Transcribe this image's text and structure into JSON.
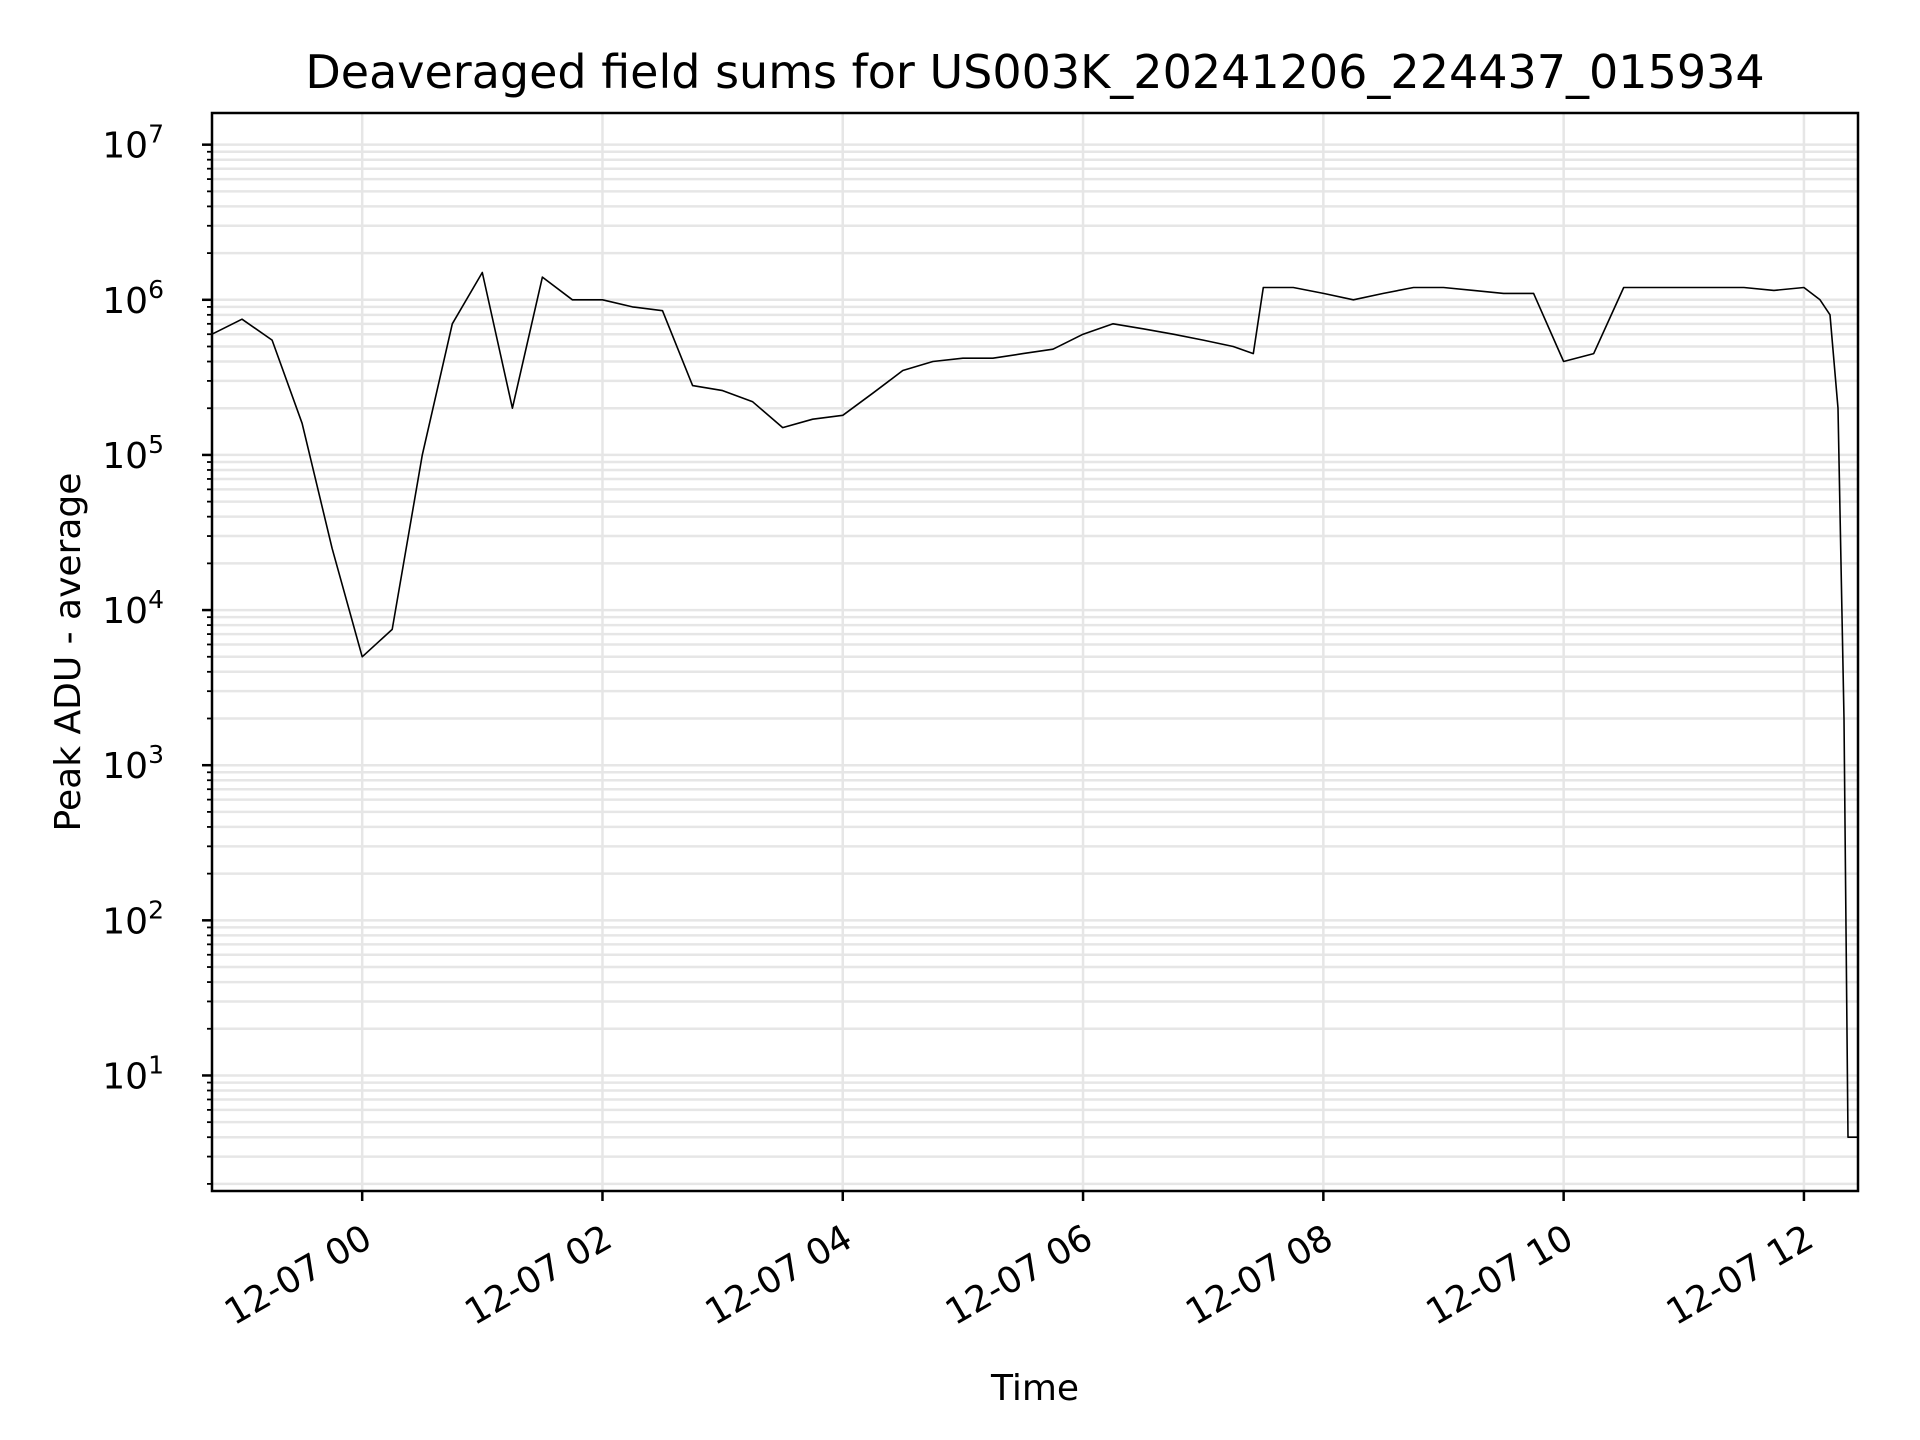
{
  "chart_data": {
    "type": "line",
    "title": "Deaveraged field sums for US003K_20241206_224437_015934",
    "xlabel": "Time",
    "ylabel": "Peak ADU - average",
    "yscale": "log",
    "ylim": [
      1.8,
      16000000
    ],
    "xlim": [
      "2024-12-06 22:45",
      "2024-12-07 12:27"
    ],
    "grid": true,
    "x_ticks": [
      "12-07 00",
      "12-07 02",
      "12-07 04",
      "12-07 06",
      "12-07 08",
      "12-07 10",
      "12-07 12"
    ],
    "y_ticks": [
      {
        "base": "10",
        "exp": "1"
      },
      {
        "base": "10",
        "exp": "2"
      },
      {
        "base": "10",
        "exp": "3"
      },
      {
        "base": "10",
        "exp": "4"
      },
      {
        "base": "10",
        "exp": "5"
      },
      {
        "base": "10",
        "exp": "6"
      },
      {
        "base": "10",
        "exp": "7"
      }
    ],
    "series": [
      {
        "color": "#000000",
        "x": [
          "2024-12-06 22:45",
          "2024-12-06 23:00",
          "2024-12-06 23:15",
          "2024-12-06 23:30",
          "2024-12-06 23:45",
          "2024-12-07 00:00",
          "2024-12-07 00:15",
          "2024-12-07 00:30",
          "2024-12-07 00:45",
          "2024-12-07 01:00",
          "2024-12-07 01:15",
          "2024-12-07 01:30",
          "2024-12-07 01:45",
          "2024-12-07 02:00",
          "2024-12-07 02:15",
          "2024-12-07 02:30",
          "2024-12-07 02:45",
          "2024-12-07 03:00",
          "2024-12-07 03:15",
          "2024-12-07 03:30",
          "2024-12-07 03:45",
          "2024-12-07 04:00",
          "2024-12-07 04:15",
          "2024-12-07 04:30",
          "2024-12-07 04:45",
          "2024-12-07 05:00",
          "2024-12-07 05:15",
          "2024-12-07 05:30",
          "2024-12-07 05:45",
          "2024-12-07 06:00",
          "2024-12-07 06:15",
          "2024-12-07 06:30",
          "2024-12-07 06:45",
          "2024-12-07 07:00",
          "2024-12-07 07:15",
          "2024-12-07 07:25",
          "2024-12-07 07:30",
          "2024-12-07 07:45",
          "2024-12-07 08:00",
          "2024-12-07 08:15",
          "2024-12-07 08:30",
          "2024-12-07 08:45",
          "2024-12-07 09:00",
          "2024-12-07 09:15",
          "2024-12-07 09:30",
          "2024-12-07 09:45",
          "2024-12-07 10:00",
          "2024-12-07 10:15",
          "2024-12-07 10:30",
          "2024-12-07 10:45",
          "2024-12-07 11:00",
          "2024-12-07 11:15",
          "2024-12-07 11:30",
          "2024-12-07 11:45",
          "2024-12-07 12:00",
          "2024-12-07 12:08",
          "2024-12-07 12:13",
          "2024-12-07 12:17",
          "2024-12-07 12:20",
          "2024-12-07 12:22",
          "2024-12-07 12:27"
        ],
        "y": [
          600000,
          750000,
          550000,
          160000,
          25000,
          5000,
          7500,
          100000,
          700000,
          1500000,
          200000,
          1400000,
          1000000,
          1000000,
          900000,
          850000,
          280000,
          260000,
          220000,
          150000,
          170000,
          180000,
          250000,
          350000,
          400000,
          420000,
          420000,
          450000,
          480000,
          600000,
          700000,
          650000,
          600000,
          550000,
          500000,
          450000,
          1200000,
          1200000,
          1100000,
          1000000,
          1100000,
          1200000,
          1200000,
          1150000,
          1100000,
          1100000,
          400000,
          450000,
          1200000,
          1200000,
          1200000,
          1200000,
          1200000,
          1150000,
          1200000,
          1000000,
          800000,
          200000,
          2000,
          4,
          4
        ]
      }
    ]
  }
}
